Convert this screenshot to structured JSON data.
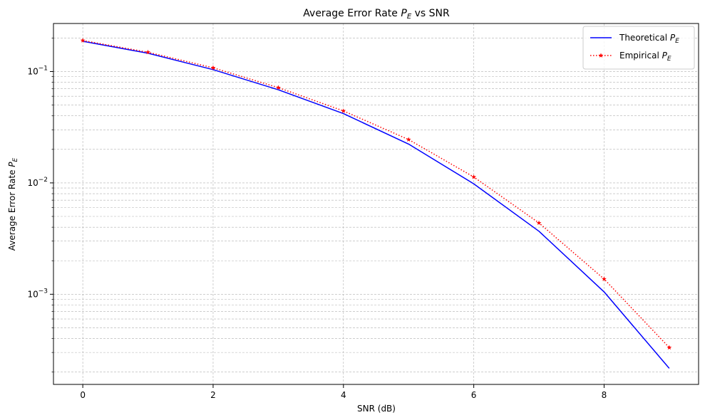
{
  "chart_data": {
    "type": "line",
    "title": "Average Error Rate P_E vs SNR",
    "title_parts": {
      "prefix": "Average Error Rate ",
      "sym": "P",
      "sub": "E",
      "suffix": " vs SNR"
    },
    "xlabel": "SNR (dB)",
    "ylabel": "Average Error Rate P_E",
    "ylabel_parts": {
      "prefix": "Average Error Rate ",
      "sym": "P",
      "sub": "E"
    },
    "x": [
      0,
      1,
      2,
      3,
      4,
      5,
      6,
      7,
      8,
      9
    ],
    "xlim": [
      -0.45,
      9.45
    ],
    "ylim": [
      0.000155,
      0.27
    ],
    "yscale": "log",
    "xticks": [
      0,
      2,
      4,
      6,
      8
    ],
    "xtick_labels": [
      "0",
      "2",
      "4",
      "6",
      "8"
    ],
    "yticks_major": [
      0.001,
      0.01,
      0.1
    ],
    "ytick_labels": [
      {
        "base": "10",
        "exp": "−3"
      },
      {
        "base": "10",
        "exp": "−2"
      },
      {
        "base": "10",
        "exp": "−1"
      }
    ],
    "grid": true,
    "legend_position": "upper right",
    "series": [
      {
        "name": "Theoretical P_E",
        "label_parts": {
          "prefix": "Theoretical ",
          "sym": "P",
          "sub": "E"
        },
        "color": "#0000ff",
        "linestyle": "solid",
        "marker": "none",
        "values": [
          0.187,
          0.146,
          0.104,
          0.0686,
          0.0419,
          0.0223,
          0.00981,
          0.00368,
          0.00105,
          0.000216
        ]
      },
      {
        "name": "Empirical P_E",
        "label_parts": {
          "prefix": "Empirical ",
          "sym": "P",
          "sub": "E"
        },
        "color": "#ff0000",
        "linestyle": "dotted",
        "marker": "star",
        "values": [
          0.19,
          0.149,
          0.108,
          0.0717,
          0.0443,
          0.0245,
          0.0113,
          0.00437,
          0.00137,
          0.000332
        ]
      }
    ]
  }
}
